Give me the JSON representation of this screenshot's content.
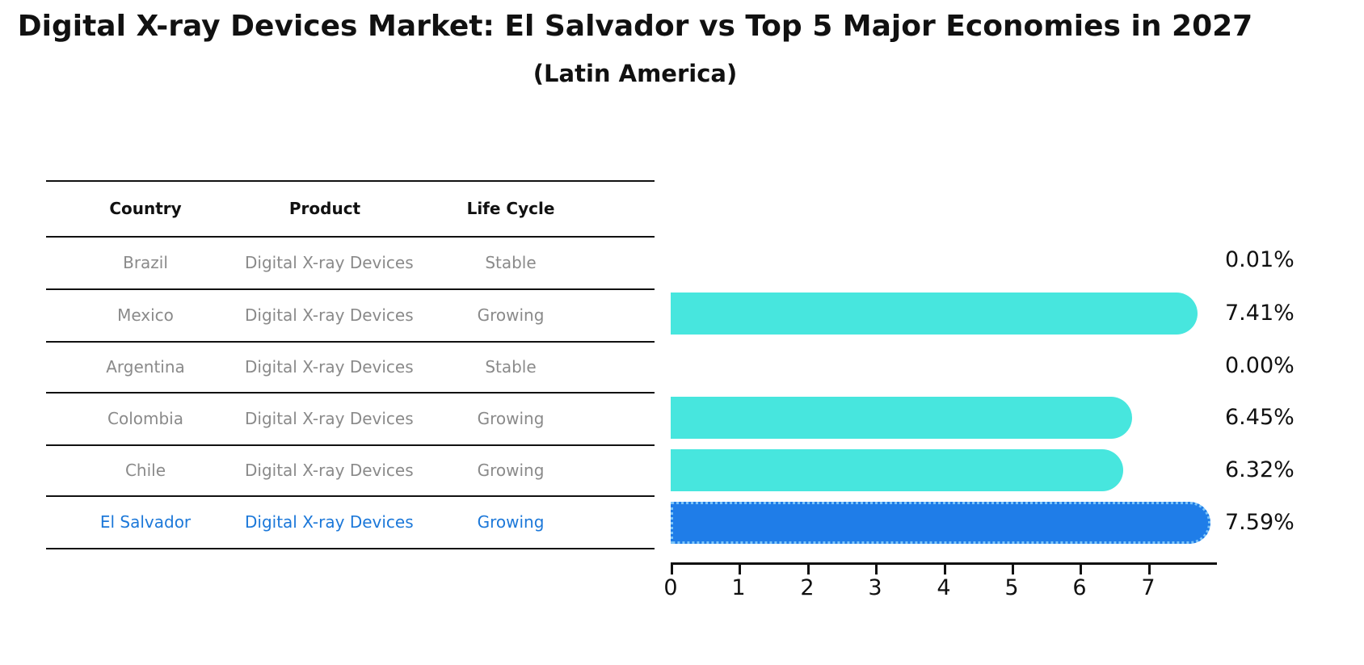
{
  "title": "Digital X-ray Devices Market: El Salvador vs Top 5 Major Economies in 2027",
  "subtitle": "(Latin America)",
  "table": {
    "headers": [
      "Country",
      "Product",
      "Life Cycle"
    ],
    "rows": [
      {
        "country": "Brazil",
        "product": "Digital X-ray Devices",
        "life_cycle": "Stable",
        "highlight": false
      },
      {
        "country": "Mexico",
        "product": "Digital X-ray Devices",
        "life_cycle": "Growing",
        "highlight": false
      },
      {
        "country": "Argentina",
        "product": "Digital X-ray Devices",
        "life_cycle": "Stable",
        "highlight": false
      },
      {
        "country": "Colombia",
        "product": "Digital X-ray Devices",
        "life_cycle": "Growing",
        "highlight": false
      },
      {
        "country": "Chile",
        "product": "Digital X-ray Devices",
        "life_cycle": "Growing",
        "highlight": true
      }
    ]
  },
  "chart_data": {
    "type": "bar",
    "orientation": "horizontal",
    "title": "Digital X-ray Devices Market: El Salvador vs Top 5 Major Economies in 2027",
    "subtitle": "(Latin America)",
    "categories": [
      "Brazil",
      "Mexico",
      "Argentina",
      "Colombia",
      "Chile",
      "El Salvador"
    ],
    "values": [
      0.01,
      7.41,
      0.0,
      6.45,
      6.32,
      7.59
    ],
    "value_labels": [
      "0.01%",
      "7.41%",
      "0.00%",
      "6.45%",
      "6.32%",
      "7.59%"
    ],
    "highlight_index": 5,
    "xlim": [
      0,
      8
    ],
    "xticks": [
      "0",
      "1",
      "2",
      "3",
      "4",
      "5",
      "6",
      "7"
    ],
    "grid": false,
    "legend": "none",
    "bar_color": "#47e6de",
    "highlight_bar_color": "#1f7de8",
    "highlight_edge_color": "#7cc4f8",
    "row_text_color": "#8a8a8a",
    "highlight_text_color": "#1c78d9"
  }
}
